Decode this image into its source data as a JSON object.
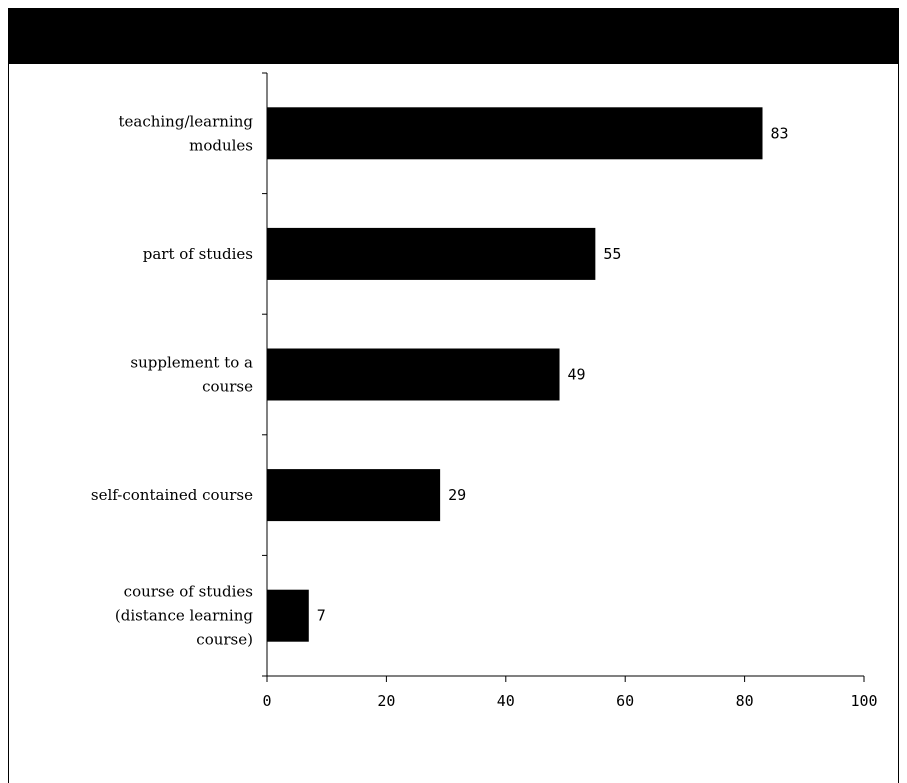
{
  "chart_data": {
    "type": "bar",
    "orientation": "horizontal",
    "title": "",
    "xlabel": "",
    "ylabel": "",
    "categories": [
      [
        "teaching/learning",
        "modules"
      ],
      [
        "part of studies"
      ],
      [
        "supplement to a",
        "course"
      ],
      [
        "self-contained course"
      ],
      [
        "course of studies",
        "(distance learning",
        "course)"
      ]
    ],
    "values": [
      83,
      55,
      49,
      29,
      7
    ],
    "xlim": [
      0,
      100
    ],
    "xticks": [
      0,
      20,
      40,
      60,
      80,
      100
    ],
    "grid": false,
    "legend": "none",
    "bar_color": "#000000"
  }
}
